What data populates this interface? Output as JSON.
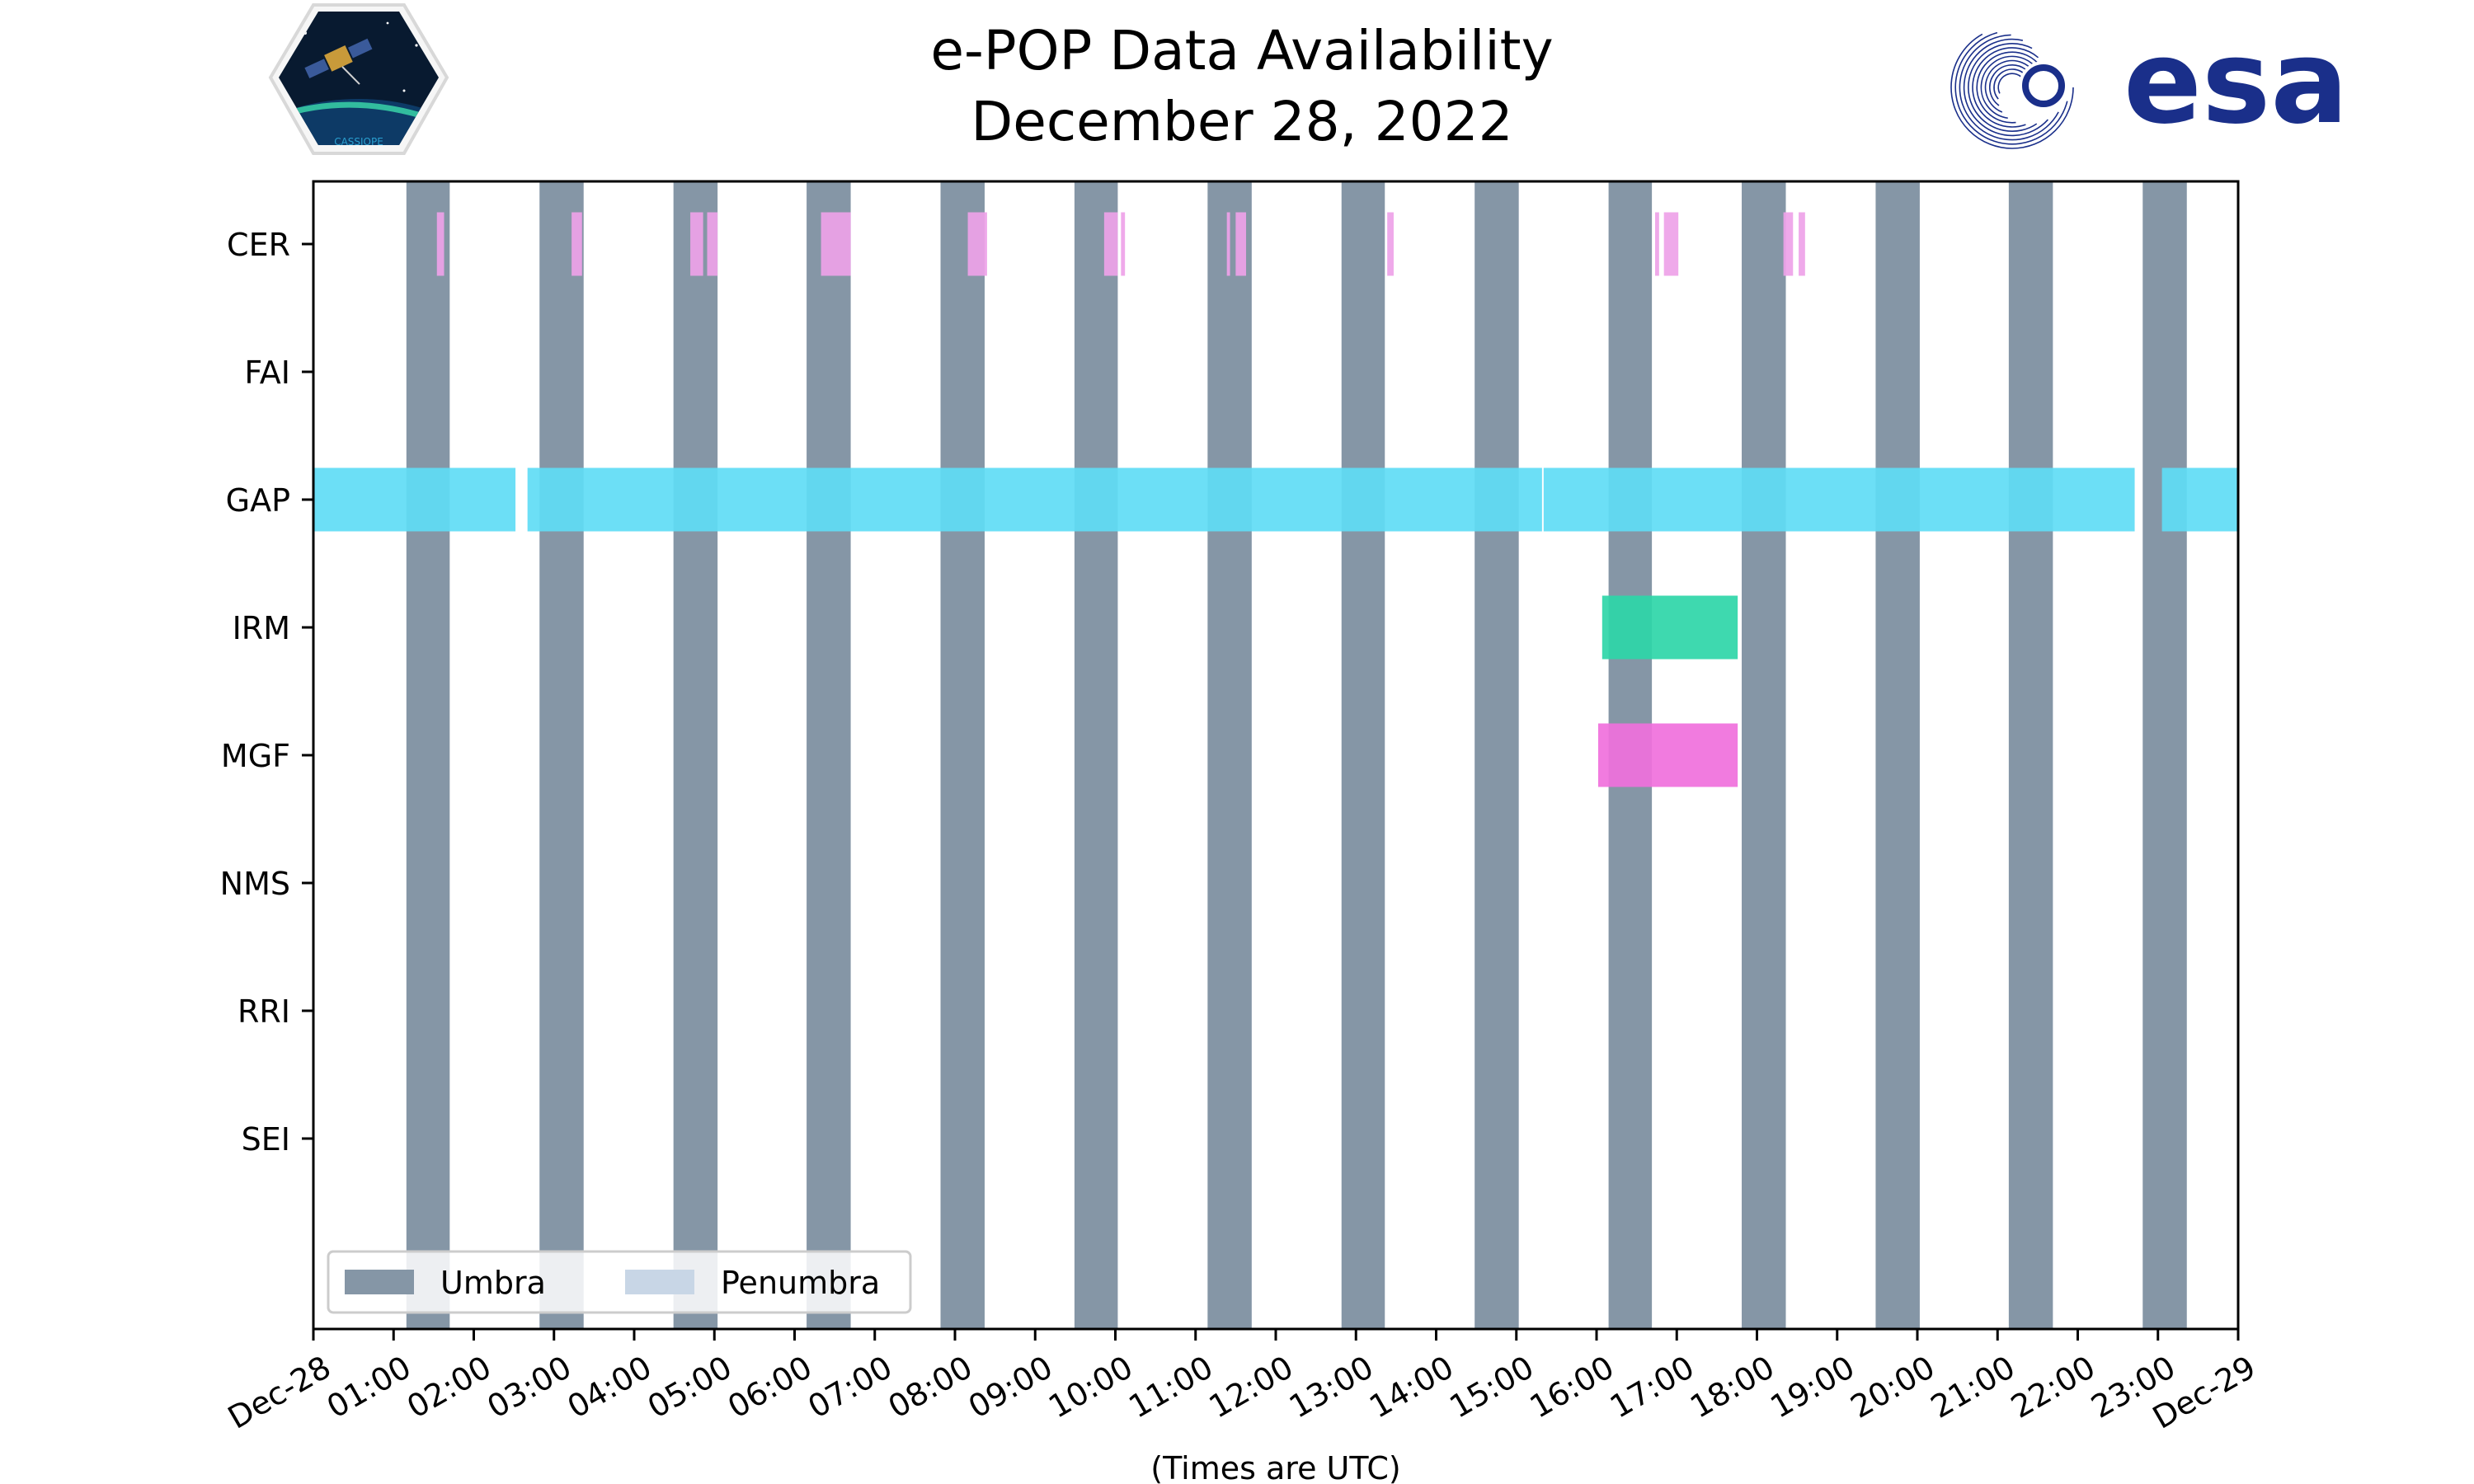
{
  "chart_data": {
    "type": "timeline",
    "title": [
      "e-POP Data Availability",
      "December 28, 2022"
    ],
    "xlabel": "(Times are UTC)",
    "xlim_hours": [
      0,
      24
    ],
    "x_ticks": [
      {
        "hour": 0,
        "label": "Dec-28"
      },
      {
        "hour": 1,
        "label": "01:00"
      },
      {
        "hour": 2,
        "label": "02:00"
      },
      {
        "hour": 3,
        "label": "03:00"
      },
      {
        "hour": 4,
        "label": "04:00"
      },
      {
        "hour": 5,
        "label": "05:00"
      },
      {
        "hour": 6,
        "label": "06:00"
      },
      {
        "hour": 7,
        "label": "07:00"
      },
      {
        "hour": 8,
        "label": "08:00"
      },
      {
        "hour": 9,
        "label": "09:00"
      },
      {
        "hour": 10,
        "label": "10:00"
      },
      {
        "hour": 11,
        "label": "11:00"
      },
      {
        "hour": 12,
        "label": "12:00"
      },
      {
        "hour": 13,
        "label": "13:00"
      },
      {
        "hour": 14,
        "label": "14:00"
      },
      {
        "hour": 15,
        "label": "15:00"
      },
      {
        "hour": 16,
        "label": "16:00"
      },
      {
        "hour": 17,
        "label": "17:00"
      },
      {
        "hour": 18,
        "label": "18:00"
      },
      {
        "hour": 19,
        "label": "19:00"
      },
      {
        "hour": 20,
        "label": "20:00"
      },
      {
        "hour": 21,
        "label": "21:00"
      },
      {
        "hour": 22,
        "label": "22:00"
      },
      {
        "hour": 23,
        "label": "23:00"
      },
      {
        "hour": 24,
        "label": "Dec-29"
      }
    ],
    "instruments": [
      "CER",
      "FAI",
      "GAP",
      "IRM",
      "MGF",
      "NMS",
      "RRI",
      "SEI"
    ],
    "legend": [
      {
        "label": "Umbra",
        "color": "#8596a6"
      },
      {
        "label": "Penumbra",
        "color": "#c8d6e6"
      }
    ],
    "umbra_intervals": [
      [
        1.16,
        1.7
      ],
      [
        2.82,
        3.37
      ],
      [
        4.49,
        5.04
      ],
      [
        6.15,
        6.7
      ],
      [
        7.82,
        8.37
      ],
      [
        9.49,
        10.03
      ],
      [
        11.15,
        11.7
      ],
      [
        12.82,
        13.36
      ],
      [
        14.48,
        15.03
      ],
      [
        16.15,
        16.69
      ],
      [
        17.81,
        18.36
      ],
      [
        19.48,
        20.03
      ],
      [
        21.14,
        21.69
      ],
      [
        22.81,
        23.36
      ]
    ],
    "series": [
      {
        "instrument": "CER",
        "color": "#eea2e8",
        "intervals": [
          [
            1.54,
            1.63
          ],
          [
            3.22,
            3.35
          ],
          [
            4.7,
            4.86
          ],
          [
            4.91,
            5.04
          ],
          [
            6.33,
            6.7
          ],
          [
            8.16,
            8.4
          ],
          [
            9.86,
            10.03
          ],
          [
            10.07,
            10.12
          ],
          [
            11.39,
            11.43
          ],
          [
            11.5,
            11.63
          ],
          [
            13.39,
            13.47
          ],
          [
            16.73,
            16.78
          ],
          [
            16.84,
            17.02
          ],
          [
            18.33,
            18.45
          ],
          [
            18.52,
            18.6
          ]
        ]
      },
      {
        "instrument": "FAI",
        "color": "#8fbce6",
        "intervals": []
      },
      {
        "instrument": "GAP",
        "color": "#5fdcf5",
        "intervals": [
          [
            0.0,
            2.52
          ],
          [
            2.67,
            15.32
          ],
          [
            15.34,
            22.71
          ],
          [
            23.05,
            24.0
          ]
        ]
      },
      {
        "instrument": "IRM",
        "color": "#2ed6a8",
        "intervals": [
          [
            16.07,
            17.76
          ]
        ]
      },
      {
        "instrument": "MGF",
        "color": "#f070dc",
        "intervals": [
          [
            16.02,
            17.76
          ]
        ]
      },
      {
        "instrument": "NMS",
        "color": "#9aa0e8",
        "intervals": []
      },
      {
        "instrument": "RRI",
        "color": "#f4b066",
        "intervals": []
      },
      {
        "instrument": "SEI",
        "color": "#b0e080",
        "intervals": []
      }
    ]
  },
  "logos": {
    "cassiope_text": "CASSIOPE",
    "esa_text": "esa",
    "esa_color": "#1a2f8a",
    "cassiope_border": "#d8d8d8"
  }
}
